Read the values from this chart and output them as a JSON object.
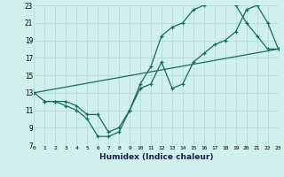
{
  "xlabel": "Humidex (Indice chaleur)",
  "bg_color": "#cff0eb",
  "line_color": "#1a6b5a",
  "grid_color": "#b8ddd8",
  "xmin": 0,
  "xmax": 23,
  "ymin": 7,
  "ymax": 23,
  "yticks": [
    7,
    9,
    11,
    13,
    15,
    17,
    19,
    21,
    23
  ],
  "xticks": [
    0,
    1,
    2,
    3,
    4,
    5,
    6,
    7,
    8,
    9,
    10,
    11,
    12,
    13,
    14,
    15,
    16,
    17,
    18,
    19,
    20,
    21,
    22,
    23
  ],
  "line1_x": [
    1,
    2,
    3,
    4,
    5,
    6,
    7,
    8,
    9,
    10,
    11,
    12,
    13,
    14,
    15,
    16,
    17,
    18,
    19,
    20,
    21,
    22,
    23
  ],
  "line1_y": [
    12,
    12,
    11.5,
    11,
    10,
    8,
    8,
    8.5,
    11,
    14,
    16,
    19.5,
    20.5,
    21,
    22.5,
    23,
    23.5,
    23.5,
    23,
    21,
    19.5,
    18,
    18
  ],
  "line2_x": [
    0,
    1,
    2,
    3,
    4,
    5,
    6,
    7,
    8,
    9,
    10,
    11,
    12,
    13,
    14,
    15,
    16,
    17,
    18,
    19,
    20,
    21,
    22,
    23
  ],
  "line2_y": [
    13,
    12,
    12,
    12,
    11.5,
    10.5,
    10.5,
    8.5,
    9,
    11,
    13.5,
    14,
    16.5,
    13.5,
    14,
    16.5,
    17.5,
    18.5,
    19,
    20,
    22.5,
    23,
    21,
    18
  ],
  "line3_x": [
    0,
    23
  ],
  "line3_y": [
    13,
    18
  ]
}
